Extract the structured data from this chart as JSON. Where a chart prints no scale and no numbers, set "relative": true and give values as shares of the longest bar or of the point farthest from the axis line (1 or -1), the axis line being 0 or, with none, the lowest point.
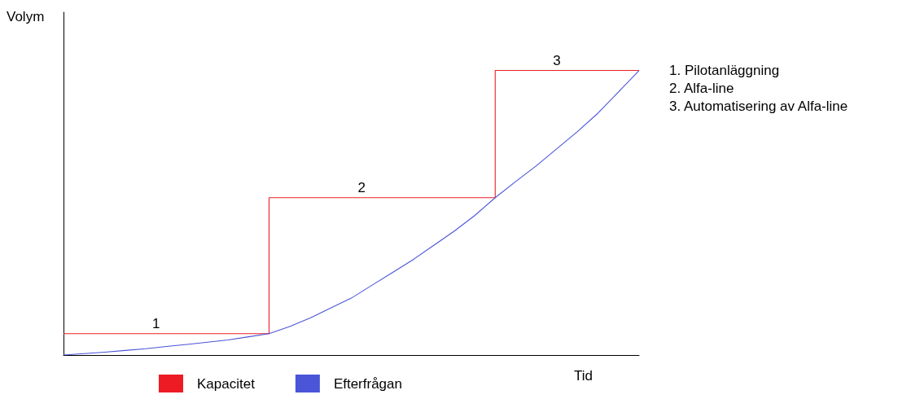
{
  "chart_data": {
    "type": "line",
    "relative": true,
    "xlabel": "Tid",
    "ylabel": "Volym",
    "legend": "bottom",
    "grid": false,
    "marker": "none",
    "categories": [
      null,
      null,
      null,
      null,
      null,
      null,
      null,
      null,
      null,
      null,
      null,
      null,
      null,
      null,
      null,
      null,
      null,
      null,
      null,
      null,
      null,
      null,
      null,
      null,
      null,
      null,
      null,
      null,
      null
    ],
    "series": [
      {
        "name": "Kapacitet",
        "type": "step",
        "color": "#ed1c24",
        "values": [
          0.075,
          0.075,
          0.075,
          0.075,
          0.075,
          0.075,
          0.075,
          0.075,
          0.075,
          0.075,
          0.553,
          0.553,
          0.553,
          0.553,
          0.553,
          0.553,
          0.553,
          0.553,
          0.553,
          0.553,
          0.553,
          1,
          1,
          1,
          1,
          1,
          1,
          1,
          1
        ]
      },
      {
        "name": "Efterfrågan",
        "color": "#4a55d8",
        "values": [
          0,
          0.005,
          0.01,
          0.016,
          0.022,
          0.03,
          0.037,
          0.045,
          0.053,
          0.064,
          0.075,
          0.1,
          0.13,
          0.165,
          0.2,
          0.245,
          0.29,
          0.335,
          0.385,
          0.435,
          0.49,
          0.553,
          0.61,
          0.665,
          0.725,
          0.785,
          0.85,
          0.925,
          1
        ]
      }
    ],
    "annotations": [
      {
        "text": "1",
        "y": 0.075
      },
      {
        "text": "2",
        "y": 0.553
      },
      {
        "text": "3",
        "y": 1
      },
      "1. Pilotanläggning",
      "2. Alfa-line",
      "3. Automatisering av Alfa-line"
    ]
  }
}
